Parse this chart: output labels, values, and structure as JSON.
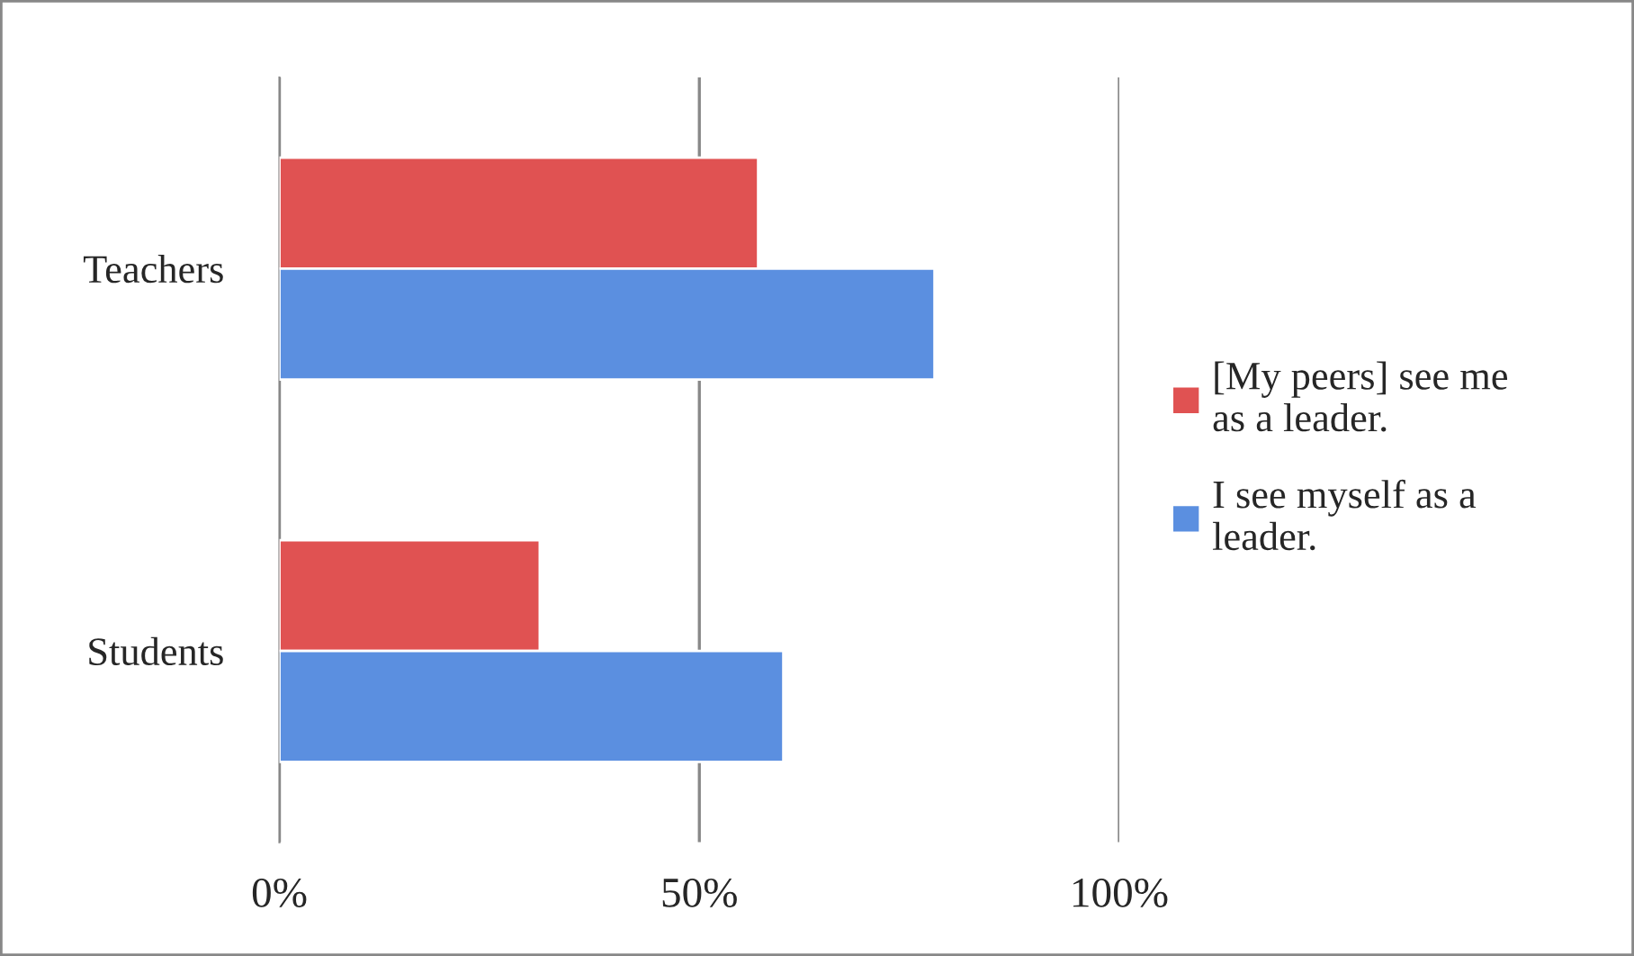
{
  "chart_data": {
    "type": "bar",
    "orientation": "horizontal",
    "categories": [
      "Teachers",
      "Students"
    ],
    "series": [
      {
        "name": "[My peers] see me as a leader.",
        "color": "#e05252",
        "values": [
          57,
          31
        ]
      },
      {
        "name": "I see myself as a leader.",
        "color": "#5b8fe0",
        "values": [
          78,
          60
        ]
      }
    ],
    "xlim": [
      0,
      100
    ],
    "xticks": [
      {
        "value": 0,
        "label": "0%"
      },
      {
        "value": 50,
        "label": "50%"
      },
      {
        "value": 100,
        "label": "100%"
      }
    ],
    "grid": "x",
    "legend": "right"
  }
}
